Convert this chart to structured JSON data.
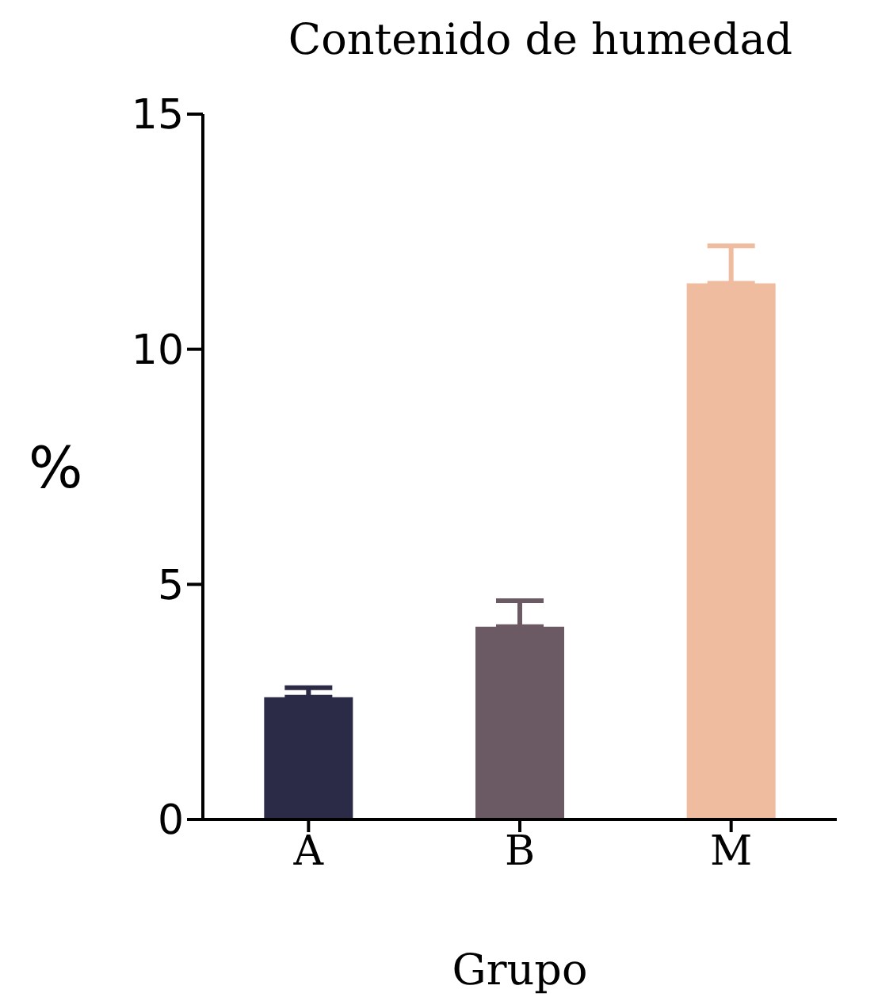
{
  "chart_data": {
    "type": "bar",
    "title": "Contenido de humedad",
    "xlabel": "Grupo",
    "ylabel": "%",
    "categories": [
      "A",
      "B",
      "M"
    ],
    "values": [
      2.6,
      4.1,
      11.4
    ],
    "errors": [
      0.2,
      0.55,
      0.8
    ],
    "colors": [
      "#2b2a47",
      "#6b5a63",
      "#f0bca0"
    ],
    "ylim": [
      0,
      15
    ],
    "yticks": [
      0,
      5,
      10,
      15
    ],
    "grid": false,
    "legend": false
  }
}
